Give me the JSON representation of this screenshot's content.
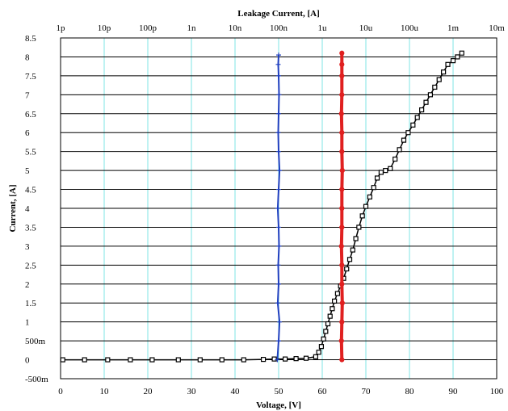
{
  "chart_data": {
    "type": "line",
    "xlabel": "Voltage, [V]",
    "ylabel": "Current, [A]",
    "x2label": "Leakage Current, [A]",
    "xlim": [
      0,
      100
    ],
    "ylim": [
      -0.5,
      8.5
    ],
    "x2lim_log10": [
      -12,
      -2
    ],
    "x_ticks": [
      "0",
      "10",
      "20",
      "30",
      "40",
      "50",
      "60",
      "70",
      "80",
      "90",
      "100"
    ],
    "y_ticks": [
      "-500m",
      "0",
      "500m",
      "1",
      "1.5",
      "2",
      "2.5",
      "3",
      "3.5",
      "4",
      "4.5",
      "5",
      "5.5",
      "6",
      "6.5",
      "7",
      "7.5",
      "8",
      "8.5"
    ],
    "x2_ticks": [
      "1p",
      "10p",
      "100p",
      "1n",
      "10n",
      "100n",
      "1u",
      "10u",
      "100u",
      "1m",
      "10m"
    ],
    "grid": true,
    "series": [
      {
        "axis": "bottom",
        "color": "#000000",
        "marker": "square-open",
        "points": [
          [
            0.5,
            0.0
          ],
          [
            5.5,
            0.0
          ],
          [
            10.8,
            0.0
          ],
          [
            16.0,
            0.0
          ],
          [
            21.0,
            0.0
          ],
          [
            27.0,
            0.0
          ],
          [
            32.0,
            0.0
          ],
          [
            37.0,
            0.0
          ],
          [
            42.0,
            0.0
          ],
          [
            46.5,
            0.01
          ],
          [
            49.0,
            0.02
          ],
          [
            51.5,
            0.02
          ],
          [
            54.0,
            0.03
          ],
          [
            56.3,
            0.04
          ],
          [
            58.5,
            0.08
          ],
          [
            59.2,
            0.2
          ],
          [
            59.8,
            0.35
          ],
          [
            60.3,
            0.55
          ],
          [
            60.8,
            0.75
          ],
          [
            61.3,
            0.95
          ],
          [
            61.8,
            1.15
          ],
          [
            62.3,
            1.35
          ],
          [
            62.8,
            1.55
          ],
          [
            63.5,
            1.75
          ],
          [
            64.2,
            1.95
          ],
          [
            64.9,
            2.15
          ],
          [
            65.6,
            2.4
          ],
          [
            66.3,
            2.65
          ],
          [
            67.0,
            2.9
          ],
          [
            67.7,
            3.2
          ],
          [
            68.4,
            3.5
          ],
          [
            69.2,
            3.8
          ],
          [
            70.0,
            4.05
          ],
          [
            70.9,
            4.3
          ],
          [
            71.8,
            4.55
          ],
          [
            72.6,
            4.8
          ],
          [
            73.5,
            4.95
          ],
          [
            74.5,
            5.0
          ],
          [
            75.6,
            5.05
          ],
          [
            76.7,
            5.3
          ],
          [
            77.7,
            5.55
          ],
          [
            78.7,
            5.8
          ],
          [
            79.7,
            6.0
          ],
          [
            80.8,
            6.2
          ],
          [
            81.8,
            6.4
          ],
          [
            82.8,
            6.6
          ],
          [
            83.8,
            6.8
          ],
          [
            84.8,
            7.0
          ],
          [
            85.8,
            7.2
          ],
          [
            86.8,
            7.4
          ],
          [
            87.8,
            7.6
          ],
          [
            88.8,
            7.8
          ],
          [
            90.0,
            7.9
          ],
          [
            91.0,
            8.0
          ],
          [
            92.0,
            8.1
          ]
        ]
      },
      {
        "axis": "top",
        "color": "#1f3fbf",
        "marker": "plus",
        "x_log10": [
          -7.03,
          -7.0,
          -6.98,
          -7.02,
          -7.0,
          -7.01,
          -6.99,
          -7.0,
          -7.02,
          -7.0,
          -6.98,
          -7.0,
          -7.01,
          -7.0,
          -6.99,
          -7.0,
          -7.01,
          -7.0
        ],
        "y": [
          0.0,
          0.5,
          1.0,
          1.5,
          2.0,
          2.5,
          3.0,
          3.5,
          4.0,
          4.5,
          5.0,
          5.5,
          6.0,
          6.5,
          7.0,
          7.5,
          7.8,
          8.05
        ]
      },
      {
        "axis": "top",
        "color": "#e02020",
        "marker": "circle",
        "x_log10": [
          -5.55,
          -5.56,
          -5.55,
          -5.54,
          -5.55,
          -5.55,
          -5.56,
          -5.55,
          -5.55,
          -5.55,
          -5.54,
          -5.55,
          -5.55,
          -5.56,
          -5.55,
          -5.55,
          -5.55,
          -5.55
        ],
        "y": [
          0.0,
          0.5,
          1.0,
          1.5,
          2.0,
          2.5,
          3.0,
          3.5,
          4.0,
          4.5,
          5.0,
          5.5,
          6.0,
          6.5,
          7.0,
          7.5,
          7.8,
          8.1
        ]
      }
    ]
  }
}
